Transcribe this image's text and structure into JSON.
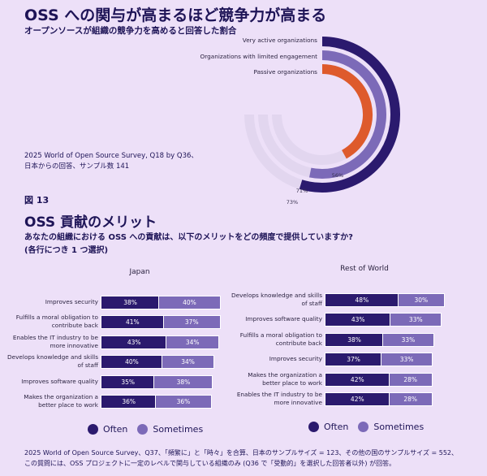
{
  "header": {
    "title": "OSS への関与が高まるほど競争力が高まる",
    "subtitle": "オープンソースが組織の競争力を高めると回答した割合",
    "source_line1": "2025 World of Open Source Survey, Q18 by Q36、",
    "source_line2": "日本からの回答、サンプル数 141"
  },
  "section": {
    "figure_label": "図 13",
    "heading": "OSS 貢献のメリット",
    "question_line1": "あなたの組織における OSS への貢献は、以下のメリットをどの頻度で提供していますか?",
    "question_line2": "(各行につき 1 つ選択)"
  },
  "footer": {
    "line1": "2025 World of Open Source Survey、Q37、「頻繁に」と「時々」を合算、日本のサンプルサイズ = 123、その他の国のサンプルサイズ = 552、",
    "line2": "この質問には、OSS プロジェクトに一定のレベルで関与している組織のみ (Q36 で「受動的」を選択した回答者以外) が回答。"
  },
  "colors": {
    "often": "#2b1a6e",
    "sometimes": "#7c6ab8",
    "passive": "#de5a2c",
    "track": "#e2d6ef"
  },
  "chart_data": [
    {
      "type": "radial-bar",
      "scale_max": 100,
      "series": [
        {
          "name": "Very active organizations",
          "value": 73,
          "label": "73%",
          "color": "#2b1a6e"
        },
        {
          "name": "Organizations with limited engagement",
          "value": 71,
          "label": "71%",
          "color": "#7c6ab8"
        },
        {
          "name": "Passive organizations",
          "value": 56,
          "label": "56%",
          "color": "#de5a2c"
        }
      ]
    },
    {
      "type": "bar",
      "stacked": true,
      "orientation": "horizontal",
      "title": "Japan",
      "categories": [
        "Improves security",
        "Fulfills a moral obligation to contribute back",
        "Enables the IT industry to be more innovative",
        "Develops knowledge and skills of staff",
        "Improves software quality",
        "Makes the organization a better place to work"
      ],
      "series": [
        {
          "name": "Often",
          "values": [
            38,
            41,
            43,
            40,
            35,
            36
          ]
        },
        {
          "name": "Sometimes",
          "values": [
            40,
            37,
            34,
            34,
            38,
            36
          ]
        }
      ],
      "legend": [
        "Often",
        "Sometimes"
      ]
    },
    {
      "type": "bar",
      "stacked": true,
      "orientation": "horizontal",
      "title": "Rest of World",
      "categories": [
        "Develops knowledge and skills of staff",
        "Improves software quality",
        "Fulfills a moral obligation to contribute back",
        "Improves security",
        "Makes the organization a better place to work",
        "Enables the IT industry to be more innovative"
      ],
      "series": [
        {
          "name": "Often",
          "values": [
            48,
            43,
            38,
            37,
            42,
            42
          ]
        },
        {
          "name": "Sometimes",
          "values": [
            30,
            33,
            33,
            33,
            28,
            28
          ]
        }
      ],
      "legend": [
        "Often",
        "Sometimes"
      ]
    }
  ]
}
